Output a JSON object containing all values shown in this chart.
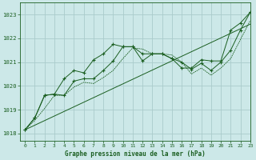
{
  "background_color": "#cce8e8",
  "grid_color": "#aacccc",
  "line_color": "#1a5e20",
  "title": "Graphe pression niveau de la mer (hPa)",
  "xlim": [
    -0.5,
    23
  ],
  "ylim": [
    1017.7,
    1023.5
  ],
  "yticks": [
    1018,
    1019,
    1020,
    1021,
    1022,
    1023
  ],
  "xticks": [
    0,
    1,
    2,
    3,
    4,
    5,
    6,
    7,
    8,
    9,
    10,
    11,
    12,
    13,
    14,
    15,
    16,
    17,
    18,
    19,
    20,
    21,
    22,
    23
  ],
  "series1_x": [
    0,
    1,
    2,
    3,
    4,
    5,
    6,
    7,
    8,
    9,
    10,
    11,
    12,
    13,
    14,
    15,
    16,
    17,
    18,
    19,
    20,
    21,
    22,
    23
  ],
  "series1_y": [
    1018.15,
    1018.65,
    1019.6,
    1019.65,
    1020.3,
    1020.65,
    1020.55,
    1021.1,
    1021.35,
    1021.75,
    1021.65,
    1021.65,
    1021.35,
    1021.35,
    1021.35,
    1021.15,
    1020.75,
    1020.75,
    1021.1,
    1021.05,
    1021.05,
    1022.35,
    1022.65,
    1023.1
  ],
  "series2_x": [
    0,
    1,
    2,
    3,
    4,
    5,
    6,
    7,
    8,
    9,
    10,
    11,
    12,
    13,
    14,
    15,
    16,
    17,
    18,
    19,
    20,
    21,
    22,
    23
  ],
  "series2_y": [
    1018.15,
    1018.65,
    1019.6,
    1019.65,
    1019.6,
    1020.2,
    1020.3,
    1020.3,
    1020.65,
    1021.05,
    1021.65,
    1021.65,
    1021.05,
    1021.35,
    1021.35,
    1021.15,
    1021.0,
    1020.7,
    1020.95,
    1020.65,
    1021.0,
    1021.5,
    1022.35,
    1023.1
  ],
  "trend_x": [
    0,
    23
  ],
  "trend_y": [
    1018.15,
    1022.6
  ],
  "dashed_x": [
    0,
    1,
    2,
    3,
    4,
    5,
    6,
    7,
    8,
    9,
    10,
    11,
    12,
    13,
    14,
    15,
    16,
    17,
    18,
    19,
    20,
    21,
    22,
    23
  ],
  "dashed_y": [
    1018.15,
    1018.55,
    1019.05,
    1019.6,
    1019.6,
    1019.95,
    1020.15,
    1020.1,
    1020.35,
    1020.65,
    1021.15,
    1021.6,
    1021.55,
    1021.35,
    1021.35,
    1021.3,
    1021.0,
    1020.5,
    1020.75,
    1020.45,
    1020.75,
    1021.15,
    1021.95,
    1022.75
  ]
}
